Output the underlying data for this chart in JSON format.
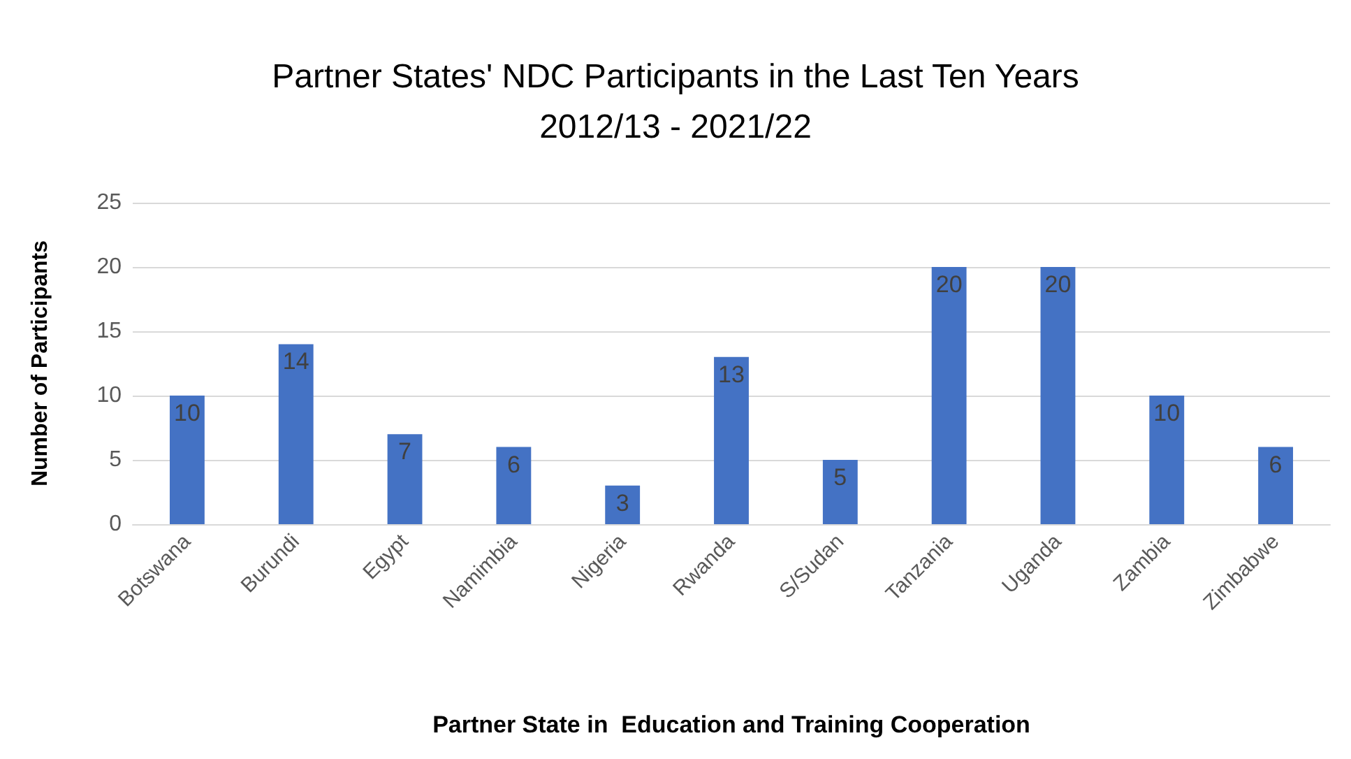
{
  "chart_data": {
    "type": "bar",
    "title": "Partner States' NDC Participants in the Last Ten Years",
    "subtitle": "2012/13 - 2021/22",
    "xlabel": "Partner State in  Education and Training Cooperation",
    "ylabel": "Number of Participants",
    "categories": [
      "Botswana",
      "Burundi",
      "Egypt",
      "Namimbia",
      "Nigeria",
      "Rwanda",
      "S/Sudan",
      "Tanzania",
      "Uganda",
      "Zambia",
      "Zimbabwe"
    ],
    "values": [
      10,
      14,
      7,
      6,
      3,
      13,
      5,
      20,
      20,
      10,
      6
    ],
    "color": "#4472c4",
    "ylim": [
      0,
      25
    ],
    "yticks": [
      0,
      5,
      10,
      15,
      20,
      25
    ],
    "grid": "y",
    "data_labels": true
  }
}
